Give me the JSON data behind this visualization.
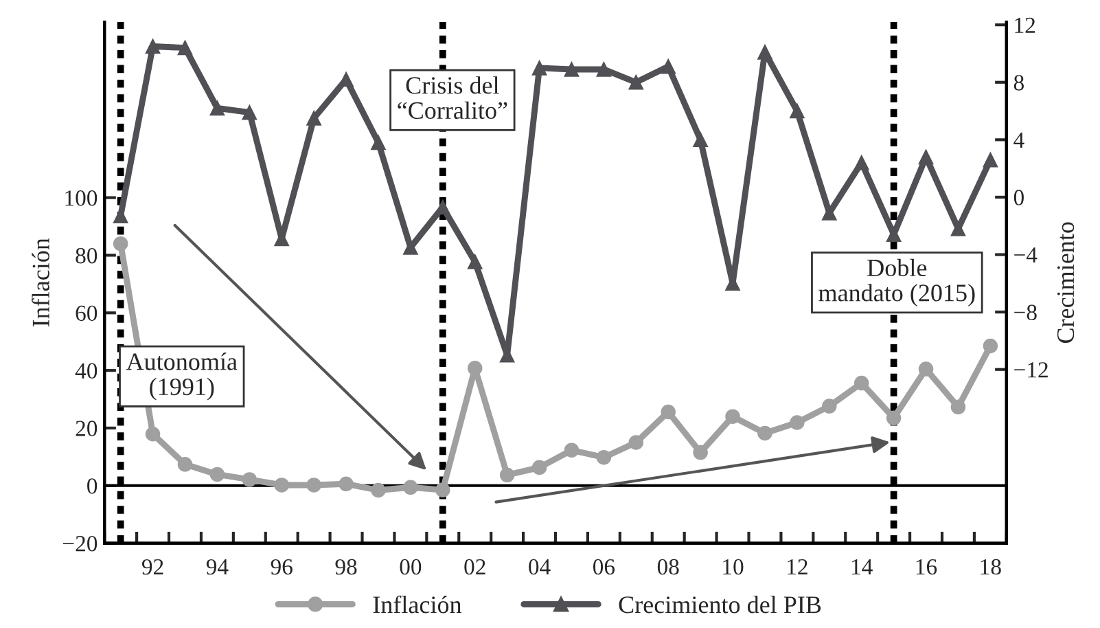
{
  "chart_data": {
    "type": "line",
    "x": [
      1991,
      1992,
      1993,
      1994,
      1995,
      1996,
      1997,
      1998,
      1999,
      2000,
      2001,
      2002,
      2003,
      2004,
      2005,
      2006,
      2007,
      2008,
      2009,
      2010,
      2011,
      2012,
      2013,
      2014,
      2015,
      2016,
      2017,
      2018
    ],
    "series": [
      {
        "name": "Inflación",
        "color": "#a0a0a0",
        "marker": "circle",
        "values": [
          84,
          17.9,
          7.4,
          3.9,
          2.1,
          0.2,
          0.2,
          0.6,
          -1.6,
          -0.6,
          -1.5,
          40.8,
          3.7,
          6.3,
          12.3,
          9.8,
          15,
          25.6,
          11.5,
          24,
          18.2,
          21.9,
          27.6,
          35.6,
          23.5,
          40.5,
          27.3,
          48.5
        ]
      },
      {
        "name": "Crecimiento del PIB",
        "color": "#505055",
        "marker": "triangle",
        "axis": "y2",
        "values": [
          -1.3,
          10.5,
          10.4,
          6.2,
          5.9,
          -2.9,
          5.5,
          8.2,
          3.8,
          -3.5,
          -0.7,
          -4.5,
          -11,
          9.0,
          8.9,
          8.9,
          8.0,
          9.1,
          4.0,
          -6.0,
          10.1,
          6.0,
          -1.1,
          2.4,
          -2.6,
          2.8,
          -2.2,
          2.6
        ]
      }
    ],
    "ylabel": "Inflación",
    "y2label": "Crecimiento",
    "xlim": [
      1990.5,
      2018.5
    ],
    "xticks": [
      {
        "value": 1990.5,
        "label": null
      },
      {
        "value": 1991.5,
        "label": null
      },
      {
        "value": 1992,
        "label": "92"
      },
      {
        "value": 1992.5,
        "label": null
      },
      {
        "value": 1993.5,
        "label": null
      },
      {
        "value": 1994,
        "label": "94"
      },
      {
        "value": 1994.5,
        "label": null
      },
      {
        "value": 1995.5,
        "label": null
      },
      {
        "value": 1996,
        "label": "96"
      },
      {
        "value": 1996.5,
        "label": null
      },
      {
        "value": 1997.5,
        "label": null
      },
      {
        "value": 1998,
        "label": "98"
      },
      {
        "value": 1998.5,
        "label": null
      },
      {
        "value": 1999.5,
        "label": null
      },
      {
        "value": 2000,
        "label": "00"
      },
      {
        "value": 2000.5,
        "label": null
      },
      {
        "value": 2001.5,
        "label": null
      },
      {
        "value": 2002,
        "label": "02"
      },
      {
        "value": 2002.5,
        "label": null
      },
      {
        "value": 2003.5,
        "label": null
      },
      {
        "value": 2004,
        "label": "04"
      },
      {
        "value": 2004.5,
        "label": null
      },
      {
        "value": 2005.5,
        "label": null
      },
      {
        "value": 2006,
        "label": "06"
      },
      {
        "value": 2006.5,
        "label": null
      },
      {
        "value": 2007.5,
        "label": null
      },
      {
        "value": 2008,
        "label": "08"
      },
      {
        "value": 2008.5,
        "label": null
      },
      {
        "value": 2009.5,
        "label": null
      },
      {
        "value": 2010,
        "label": "10"
      },
      {
        "value": 2010.5,
        "label": null
      },
      {
        "value": 2011.5,
        "label": null
      },
      {
        "value": 2012,
        "label": "12"
      },
      {
        "value": 2012.5,
        "label": null
      },
      {
        "value": 2013.5,
        "label": null
      },
      {
        "value": 2014,
        "label": "14"
      },
      {
        "value": 2014.5,
        "label": null
      },
      {
        "value": 2015.5,
        "label": null
      },
      {
        "value": 2016,
        "label": "16"
      },
      {
        "value": 2016.5,
        "label": null
      },
      {
        "value": 2017.5,
        "label": null
      },
      {
        "value": 2018,
        "label": "18"
      },
      {
        "value": 2018.5,
        "label": null
      }
    ],
    "ylim": [
      -20,
      161
    ],
    "yticks": [
      {
        "value": -20,
        "label": "−20"
      },
      0,
      20,
      40,
      60,
      80,
      100
    ],
    "y2lim": [
      -24.1,
      12.2
    ],
    "y2ticks": [
      {
        "value": -12,
        "label": "−12"
      },
      {
        "value": -8,
        "label": "−8"
      },
      {
        "value": -4,
        "label": "−4"
      },
      0,
      4,
      8,
      12
    ],
    "ref_lines": [
      {
        "axis": "y",
        "value": 0,
        "color": "#000000",
        "line_style": "solid"
      },
      {
        "axis": "x",
        "value": 1991,
        "label": "Autonomía\n(1991)",
        "color": "#000000",
        "line_style": "dashed"
      },
      {
        "axis": "x",
        "value": 2001,
        "label": "Crisis del\n“Corralito”",
        "color": "#000000",
        "line_style": "dashed"
      },
      {
        "axis": "x",
        "value": 2015,
        "label": "Doble\nmandato (2015)",
        "color": "#000000",
        "line_style": "dashed"
      }
    ],
    "grid": false,
    "legend": "bottom",
    "line_style": "solid"
  }
}
